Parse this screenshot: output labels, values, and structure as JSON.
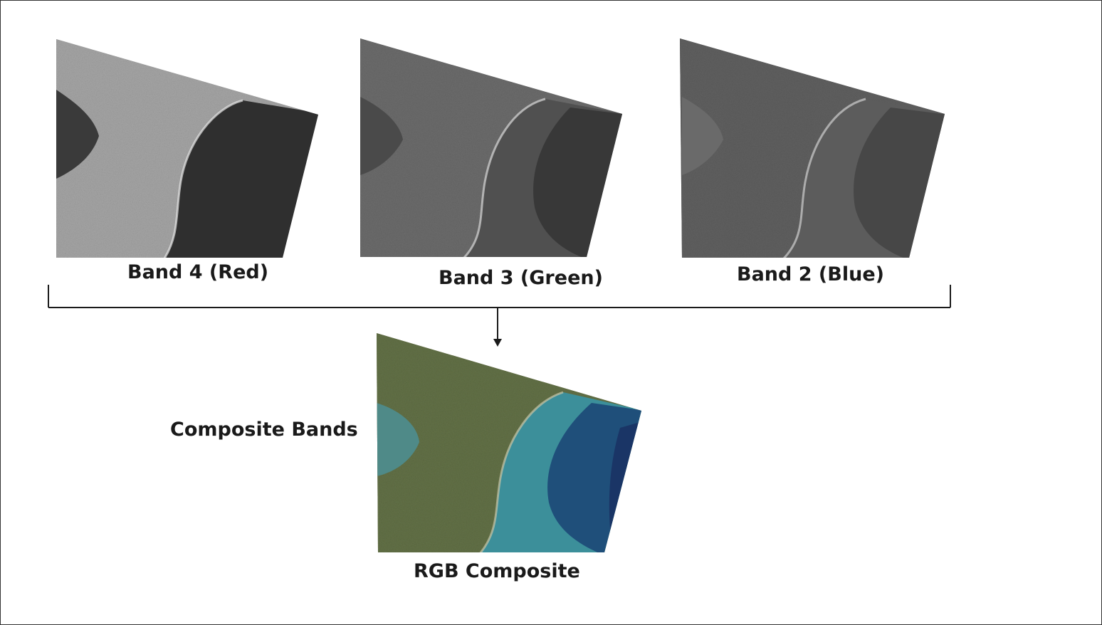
{
  "bands": [
    {
      "id": "red",
      "label": "Band 4 (Red)"
    },
    {
      "id": "green",
      "label": "Band 3 (Green)"
    },
    {
      "id": "blue",
      "label": "Band 2 (Blue)"
    }
  ],
  "composite_label": "RGB Composite",
  "process_label": "Composite Bands"
}
